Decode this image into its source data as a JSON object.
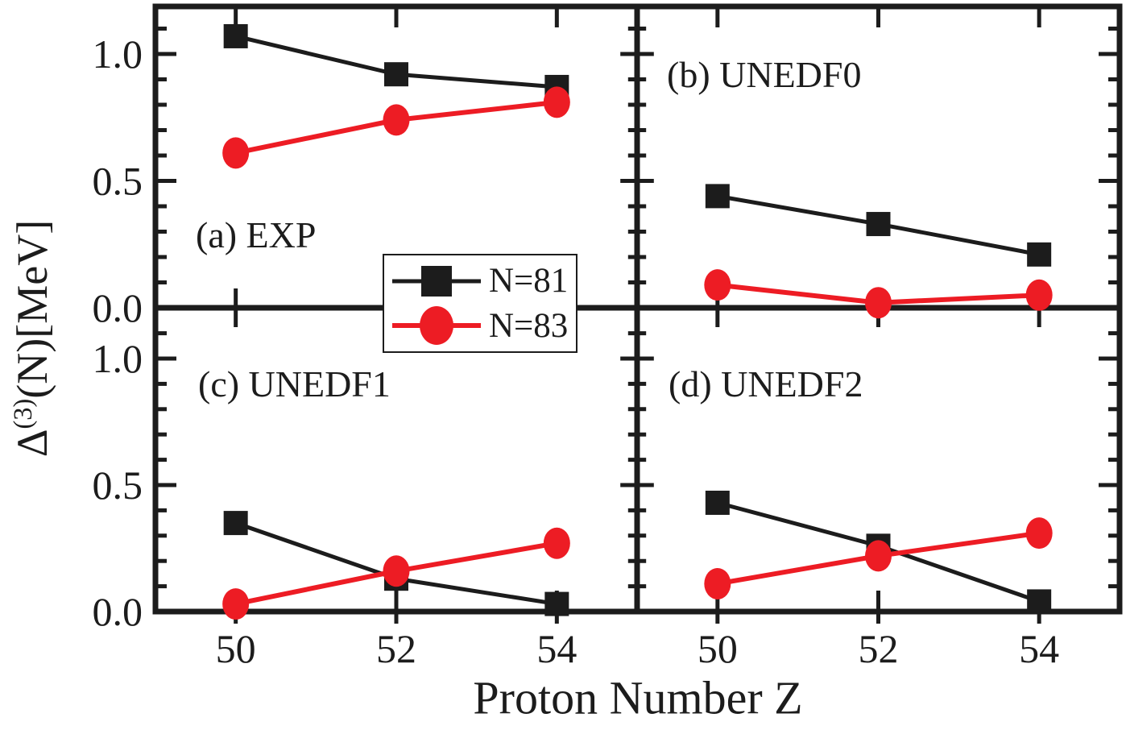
{
  "figure": {
    "y_axis_label": {
      "delta": "Δ",
      "sup": "(3)",
      "rest": "(N)[MeV]"
    },
    "x_axis_label": "Proton Number Z",
    "colors": {
      "n81": "#1c1c1c",
      "n83": "#ed1c24",
      "background": "#ffffff",
      "border": "#1c1c1c"
    }
  },
  "legend": {
    "entries": [
      {
        "label": "N=81",
        "marker": "square",
        "color": "#1c1c1c"
      },
      {
        "label": "N=83",
        "marker": "circle",
        "color": "#ed1c24"
      }
    ]
  },
  "chart_data": {
    "type": "line",
    "x": [
      50,
      52,
      54
    ],
    "x_tick_labels": [
      "50",
      "52",
      "54"
    ],
    "xlabel": "Proton Number Z",
    "ylabel": "Δ(3)(N)[MeV]",
    "xlim": [
      49,
      55
    ],
    "ylim_top_row": [
      0,
      1.19
    ],
    "ylim_bottom_row": [
      0,
      1.2
    ],
    "y_major_ticks": [
      0.0,
      0.5,
      1.0
    ],
    "y_tick_labels": [
      "0.0",
      "0.5",
      "1.0"
    ],
    "y_minor_tick_step": 0.1,
    "grid": false,
    "legend_position": "center-of-figure",
    "panels": [
      {
        "id": "a",
        "label": "(a) EXP",
        "row": "top",
        "col": "left",
        "series": [
          {
            "name": "N=81",
            "marker": "square",
            "color": "#1c1c1c",
            "values": [
              1.07,
              0.92,
              0.87
            ]
          },
          {
            "name": "N=83",
            "marker": "circle",
            "color": "#ed1c24",
            "values": [
              0.61,
              0.74,
              0.81
            ]
          }
        ]
      },
      {
        "id": "b",
        "label": "(b) UNEDF0",
        "row": "top",
        "col": "right",
        "series": [
          {
            "name": "N=81",
            "marker": "square",
            "color": "#1c1c1c",
            "values": [
              0.44,
              0.33,
              0.21
            ]
          },
          {
            "name": "N=83",
            "marker": "circle",
            "color": "#ed1c24",
            "values": [
              0.09,
              0.02,
              0.05
            ]
          }
        ]
      },
      {
        "id": "c",
        "label": "(c) UNEDF1",
        "row": "bottom",
        "col": "left",
        "series": [
          {
            "name": "N=81",
            "marker": "square",
            "color": "#1c1c1c",
            "values": [
              0.35,
              0.13,
              0.03
            ]
          },
          {
            "name": "N=83",
            "marker": "circle",
            "color": "#ed1c24",
            "values": [
              0.03,
              0.16,
              0.27
            ]
          }
        ]
      },
      {
        "id": "d",
        "label": "(d) UNEDF2",
        "row": "bottom",
        "col": "right",
        "series": [
          {
            "name": "N=81",
            "marker": "square",
            "color": "#1c1c1c",
            "values": [
              0.43,
              0.26,
              0.04
            ]
          },
          {
            "name": "N=83",
            "marker": "circle",
            "color": "#ed1c24",
            "values": [
              0.11,
              0.22,
              0.31
            ]
          }
        ]
      }
    ]
  }
}
